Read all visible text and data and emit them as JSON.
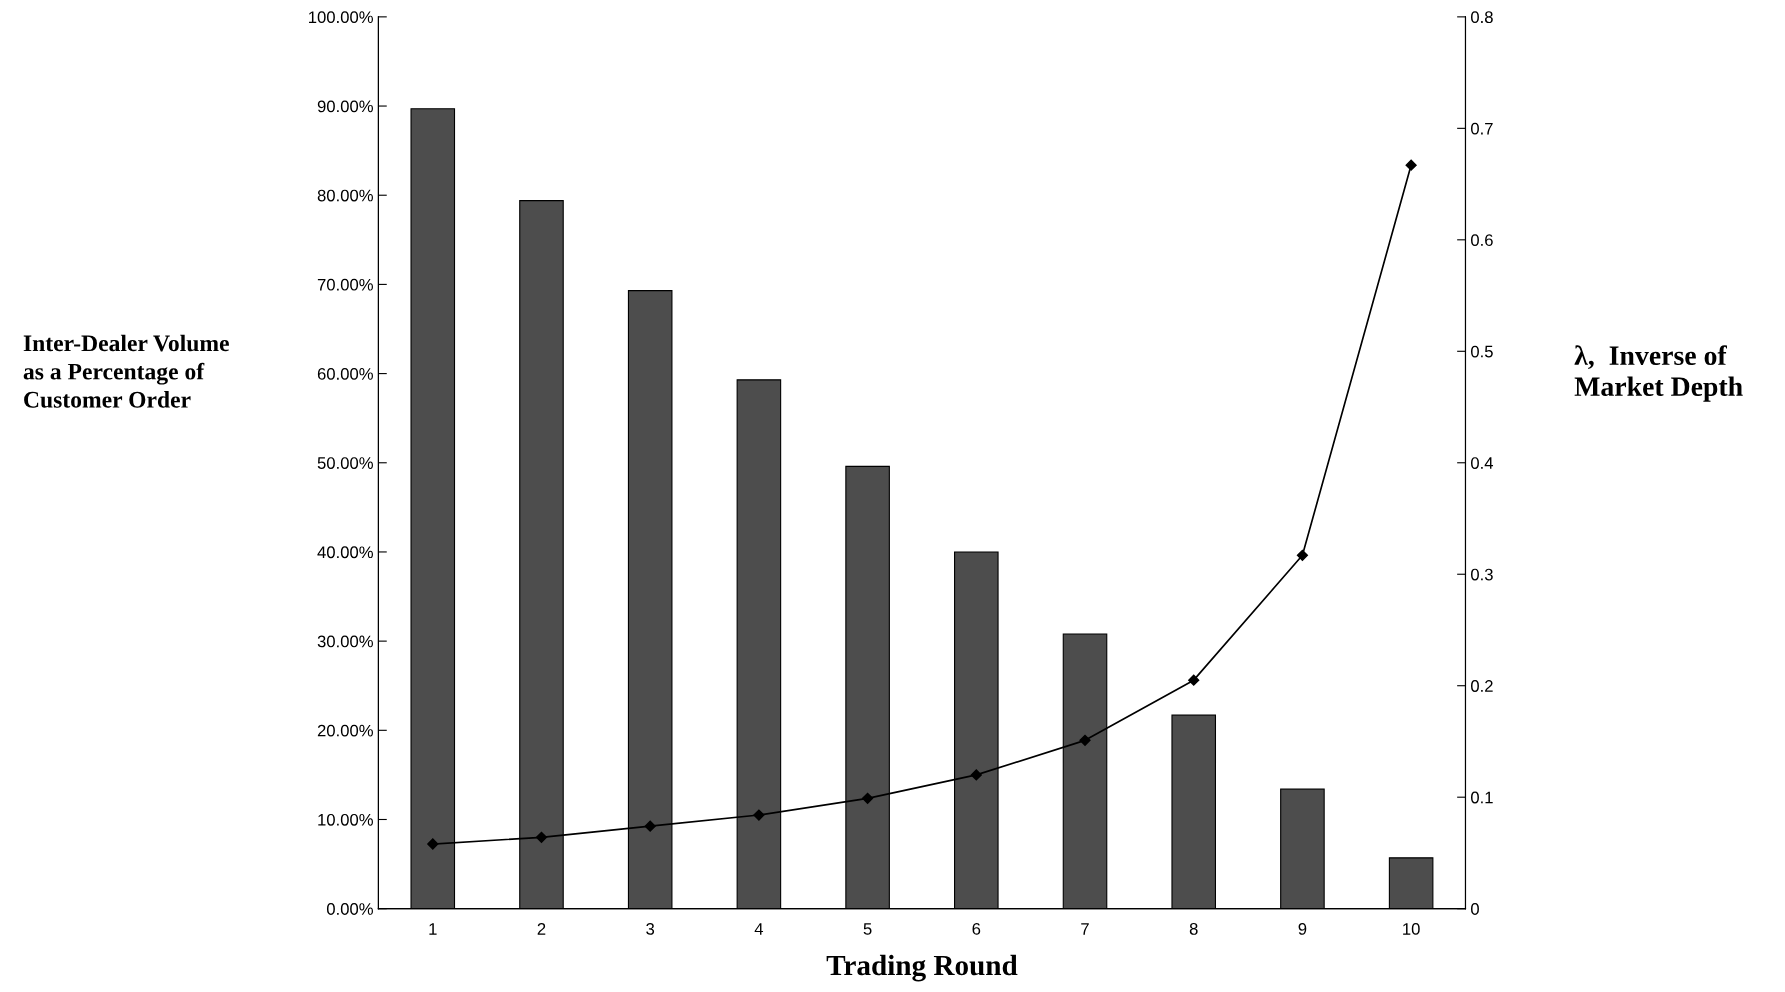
{
  "chart_data": {
    "type": "bar",
    "xlabel": "Trading Round",
    "ylabel": "Inter-Dealer Volume\nas a Percentage of\nCustomer Order",
    "y2label": "λ,  Inverse of\nMarket Depth",
    "categories": [
      "1",
      "2",
      "3",
      "4",
      "5",
      "6",
      "7",
      "8",
      "9",
      "10"
    ],
    "series": [
      {
        "color": "#4d4d4d",
        "values": [
          89.7,
          79.4,
          69.3,
          59.3,
          49.6,
          40.0,
          30.8,
          21.7,
          13.4,
          5.7
        ]
      },
      {
        "type": "line",
        "axis": "y2",
        "color": "#000000",
        "values": [
          0.058,
          0.064,
          0.074,
          0.084,
          0.099,
          0.12,
          0.151,
          0.205,
          0.317,
          0.667
        ]
      }
    ],
    "ylim": [
      0,
      100
    ],
    "yticks": [
      {
        "value": 0,
        "label": "0.00%"
      },
      {
        "value": 10,
        "label": "10.00%"
      },
      {
        "value": 20,
        "label": "20.00%"
      },
      {
        "value": 30,
        "label": "30.00%"
      },
      {
        "value": 40,
        "label": "40.00%"
      },
      {
        "value": 50,
        "label": "50.00%"
      },
      {
        "value": 60,
        "label": "60.00%"
      },
      {
        "value": 70,
        "label": "70.00%"
      },
      {
        "value": 80,
        "label": "80.00%"
      },
      {
        "value": 90,
        "label": "90.00%"
      },
      {
        "value": 100,
        "label": "100.00%"
      }
    ],
    "y2lim": [
      0,
      0.8
    ],
    "y2ticks": [
      0,
      0.1,
      0.2,
      0.3,
      0.4,
      0.5,
      0.6,
      0.7,
      0.8
    ],
    "marker": "diamond",
    "line_style": "solid",
    "grid": false,
    "legend": false
  }
}
